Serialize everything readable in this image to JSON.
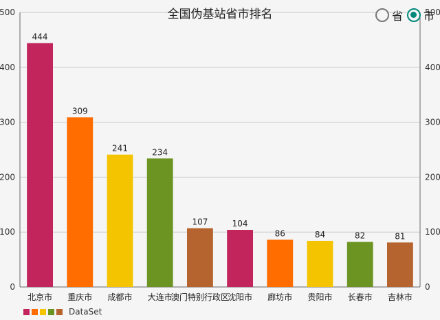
{
  "title": "全国伪基站省市排名",
  "radio": {
    "options": [
      {
        "label": "省",
        "selected": false
      },
      {
        "label": "市",
        "selected": true
      }
    ],
    "accent": "#00897b"
  },
  "chart_data": {
    "type": "bar",
    "title": "全国伪基站省市排名",
    "categories": [
      "北京市",
      "重庆市",
      "成都市",
      "大连市",
      "澳门特别行政区",
      "沈阳市",
      "廊坊市",
      "贵阳市",
      "长春市",
      "吉林市"
    ],
    "series": [
      {
        "name": "DataSet",
        "values": [
          444,
          309,
          241,
          234,
          107,
          104,
          86,
          84,
          82,
          81
        ]
      }
    ],
    "colors": [
      "#c2255c",
      "#ff6d00",
      "#f5c400",
      "#6b9423",
      "#b5642f"
    ],
    "ylim": [
      0,
      500
    ],
    "yticks": [
      0,
      100,
      200,
      300,
      400,
      500
    ],
    "grid": true,
    "legend": "bottom-left",
    "xlabel": "",
    "ylabel": ""
  }
}
